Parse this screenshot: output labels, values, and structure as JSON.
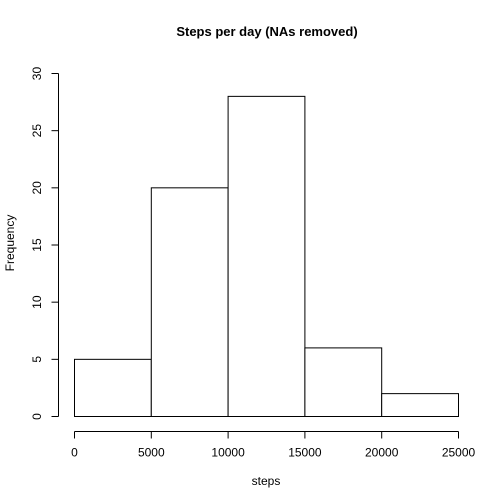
{
  "chart_data": {
    "type": "bar",
    "title": "Steps per day (NAs removed)",
    "xlabel": "steps",
    "ylabel": "Frequency",
    "bins": [
      {
        "start": 0,
        "end": 5000,
        "value": 5
      },
      {
        "start": 5000,
        "end": 10000,
        "value": 20
      },
      {
        "start": 10000,
        "end": 15000,
        "value": 28
      },
      {
        "start": 15000,
        "end": 20000,
        "value": 6
      },
      {
        "start": 20000,
        "end": 25000,
        "value": 2
      }
    ],
    "xlim": [
      0,
      25000
    ],
    "ylim": [
      0,
      30
    ],
    "xticks": [
      "0",
      "5000",
      "10000",
      "15000",
      "20000",
      "25000"
    ],
    "yticks": [
      "0",
      "5",
      "10",
      "15",
      "20",
      "25",
      "30"
    ],
    "grid": false,
    "legend": "none"
  }
}
